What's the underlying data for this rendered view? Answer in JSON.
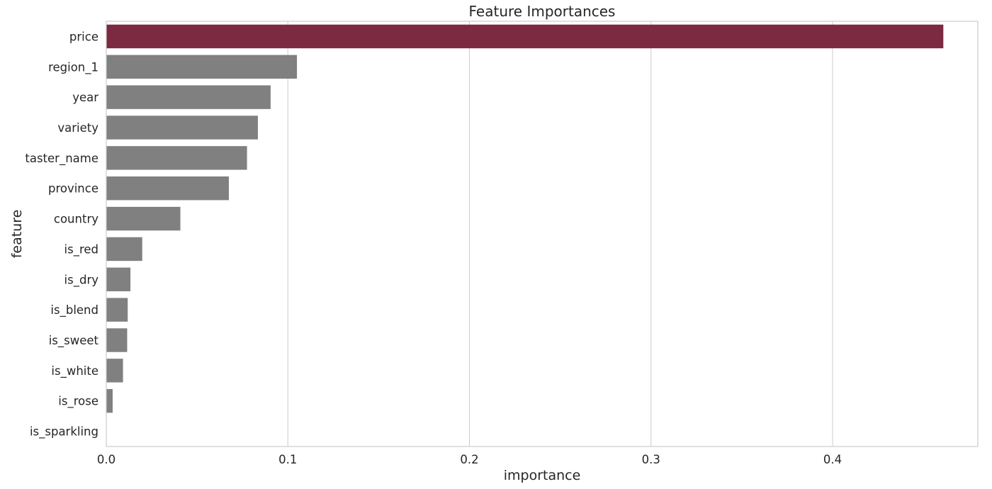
{
  "chart_data": {
    "type": "bar",
    "orientation": "horizontal",
    "title": "Feature Importances",
    "xlabel": "importance",
    "ylabel": "feature",
    "xlim": [
      0.0,
      0.48
    ],
    "xticks": [
      0.0,
      0.1,
      0.2,
      0.3,
      0.4
    ],
    "xtick_labels": [
      "0.0",
      "0.1",
      "0.2",
      "0.3",
      "0.4"
    ],
    "grid": "vertical",
    "categories": [
      "price",
      "region_1",
      "year",
      "variety",
      "taster_name",
      "province",
      "country",
      "is_red",
      "is_dry",
      "is_blend",
      "is_sweet",
      "is_white",
      "is_rose",
      "is_sparkling"
    ],
    "values": [
      0.461,
      0.105,
      0.0905,
      0.0835,
      0.0775,
      0.0675,
      0.0408,
      0.0198,
      0.0133,
      0.0118,
      0.0115,
      0.0092,
      0.0035,
      0.0002
    ],
    "colors": {
      "highlight": "#7b2a42",
      "default": "#808080"
    },
    "highlight_index": 0
  }
}
